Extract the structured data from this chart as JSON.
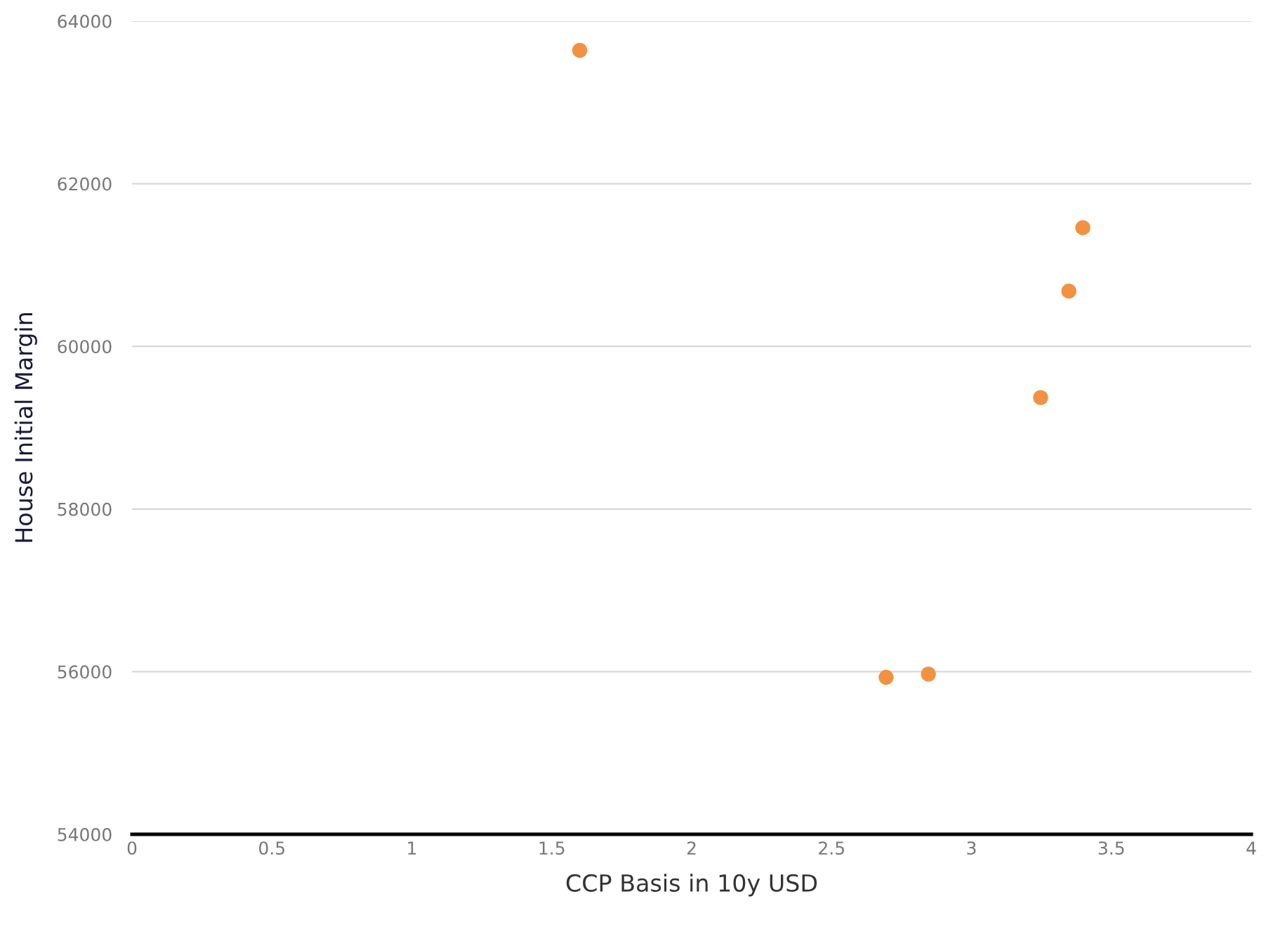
{
  "chart_data": {
    "type": "scatter",
    "xlabel": "CCP Basis in 10y USD",
    "ylabel": "House Initial Margin",
    "x": [
      1.6,
      2.695,
      2.846,
      3.247,
      3.348,
      3.398
    ],
    "series": [
      {
        "color": "#f39142",
        "values": [
          63640,
          55930,
          55970,
          59370,
          60680,
          61460
        ]
      }
    ],
    "xlim": [
      0,
      4
    ],
    "xticks": [
      0,
      0.5,
      1,
      1.5,
      2,
      2.5,
      3,
      3.5,
      4
    ],
    "ylim": [
      54000,
      64000
    ],
    "yticks": [
      54000,
      56000,
      58000,
      60000,
      62000,
      64000
    ],
    "grid": "y",
    "marker": "circle"
  }
}
